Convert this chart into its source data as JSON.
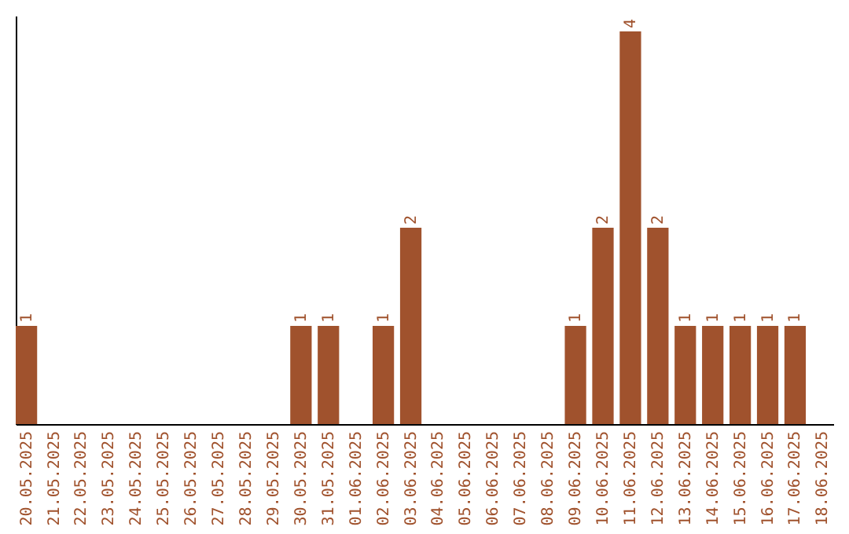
{
  "chart_data": {
    "type": "bar",
    "categories": [
      "20.05.2025",
      "21.05.2025",
      "22.05.2025",
      "23.05.2025",
      "24.05.2025",
      "25.05.2025",
      "26.05.2025",
      "27.05.2025",
      "28.05.2025",
      "29.05.2025",
      "30.05.2025",
      "31.05.2025",
      "01.06.2025",
      "02.06.2025",
      "03.06.2025",
      "04.06.2025",
      "05.06.2025",
      "06.06.2025",
      "07.06.2025",
      "08.06.2025",
      "09.06.2025",
      "10.06.2025",
      "11.06.2025",
      "12.06.2025",
      "13.06.2025",
      "14.06.2025",
      "15.06.2025",
      "16.06.2025",
      "17.06.2025",
      "18.06.2025"
    ],
    "values": [
      1,
      0,
      0,
      0,
      0,
      0,
      0,
      0,
      0,
      0,
      1,
      1,
      0,
      1,
      2,
      0,
      0,
      0,
      0,
      0,
      1,
      2,
      4,
      2,
      1,
      1,
      1,
      1,
      1,
      0
    ],
    "value_labels": [
      "1",
      null,
      null,
      null,
      null,
      null,
      null,
      null,
      null,
      null,
      "1",
      "1",
      null,
      "1",
      "2",
      null,
      null,
      null,
      null,
      null,
      "1",
      "2",
      "4",
      "2",
      "1",
      "1",
      "1",
      "1",
      "1",
      null
    ],
    "color": "#a0522d",
    "ylim": [
      0,
      4.16
    ],
    "tick_labels": "x"
  }
}
